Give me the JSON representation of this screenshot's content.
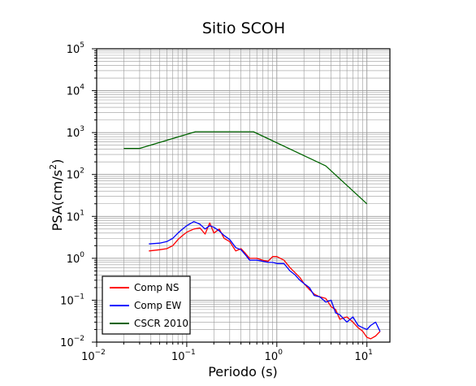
{
  "chart_data": {
    "type": "line",
    "title": "Sitio SCOH",
    "xlabel": "Periodo (s)",
    "ylabel_main": "PSA(cm/s",
    "ylabel_sup": "2",
    "ylabel_close": ")",
    "xscale": "log",
    "yscale": "log",
    "xlim": [
      0.01,
      18
    ],
    "ylim": [
      0.01,
      100000
    ],
    "grid": true,
    "legend_position": "bottom-left",
    "x_ticks": [
      {
        "base": "10",
        "exp": "−2",
        "value": 0.01
      },
      {
        "base": "10",
        "exp": "−1",
        "value": 0.1
      },
      {
        "base": "10",
        "exp": "0",
        "value": 1
      },
      {
        "base": "10",
        "exp": "1",
        "value": 10
      }
    ],
    "y_ticks": [
      {
        "base": "10",
        "exp": "−2",
        "value": 0.01
      },
      {
        "base": "10",
        "exp": "−1",
        "value": 0.1
      },
      {
        "base": "10",
        "exp": "0",
        "value": 1
      },
      {
        "base": "10",
        "exp": "1",
        "value": 10
      },
      {
        "base": "10",
        "exp": "2",
        "value": 100
      },
      {
        "base": "10",
        "exp": "3",
        "value": 1000
      },
      {
        "base": "10",
        "exp": "4",
        "value": 10000
      },
      {
        "base": "10",
        "exp": "5",
        "value": 100000
      }
    ],
    "series": [
      {
        "name": "Comp NS",
        "color": "#ff0000",
        "x": [
          0.038,
          0.05,
          0.06,
          0.07,
          0.08,
          0.09,
          0.1,
          0.12,
          0.14,
          0.16,
          0.18,
          0.2,
          0.23,
          0.26,
          0.3,
          0.35,
          0.4,
          0.45,
          0.5,
          0.6,
          0.7,
          0.8,
          0.9,
          1.0,
          1.2,
          1.4,
          1.6,
          1.8,
          2.0,
          2.3,
          2.6,
          3.0,
          3.5,
          4.0,
          4.5,
          5.0,
          6.0,
          7.0,
          8.0,
          9.0,
          10.0,
          11.0,
          12.5,
          14.0
        ],
        "y": [
          1.5,
          1.6,
          1.7,
          2.0,
          2.8,
          3.5,
          4.2,
          5.0,
          5.3,
          3.8,
          7.0,
          4.0,
          5.0,
          3.0,
          2.5,
          1.5,
          1.7,
          1.3,
          1.0,
          1.0,
          0.9,
          0.85,
          1.1,
          1.1,
          0.9,
          0.6,
          0.45,
          0.35,
          0.25,
          0.18,
          0.14,
          0.12,
          0.11,
          0.07,
          0.06,
          0.035,
          0.04,
          0.03,
          0.022,
          0.018,
          0.013,
          0.012,
          0.014,
          0.018
        ]
      },
      {
        "name": "Comp EW",
        "color": "#0000ff",
        "x": [
          0.038,
          0.05,
          0.06,
          0.07,
          0.08,
          0.09,
          0.1,
          0.12,
          0.14,
          0.16,
          0.18,
          0.2,
          0.23,
          0.26,
          0.3,
          0.35,
          0.4,
          0.45,
          0.5,
          0.6,
          0.7,
          0.8,
          0.9,
          1.0,
          1.2,
          1.4,
          1.6,
          1.8,
          2.0,
          2.3,
          2.6,
          3.0,
          3.5,
          4.0,
          4.5,
          5.0,
          6.0,
          7.0,
          8.0,
          9.0,
          10.0,
          11.0,
          12.5,
          14.0
        ],
        "y": [
          2.2,
          2.3,
          2.5,
          3.0,
          4.0,
          5.0,
          6.0,
          7.5,
          6.5,
          5.0,
          6.0,
          5.5,
          4.5,
          3.5,
          2.8,
          1.8,
          1.6,
          1.2,
          0.9,
          0.9,
          0.85,
          0.8,
          0.8,
          0.75,
          0.75,
          0.5,
          0.4,
          0.3,
          0.25,
          0.2,
          0.13,
          0.12,
          0.09,
          0.1,
          0.05,
          0.045,
          0.03,
          0.04,
          0.025,
          0.022,
          0.02,
          0.025,
          0.03,
          0.018
        ]
      },
      {
        "name": "CSCR 2010",
        "color": "#006400",
        "x": [
          0.02,
          0.03,
          0.125,
          0.55,
          3.5,
          10.0
        ],
        "y": [
          420,
          420,
          1050,
          1050,
          160,
          20
        ]
      }
    ]
  }
}
